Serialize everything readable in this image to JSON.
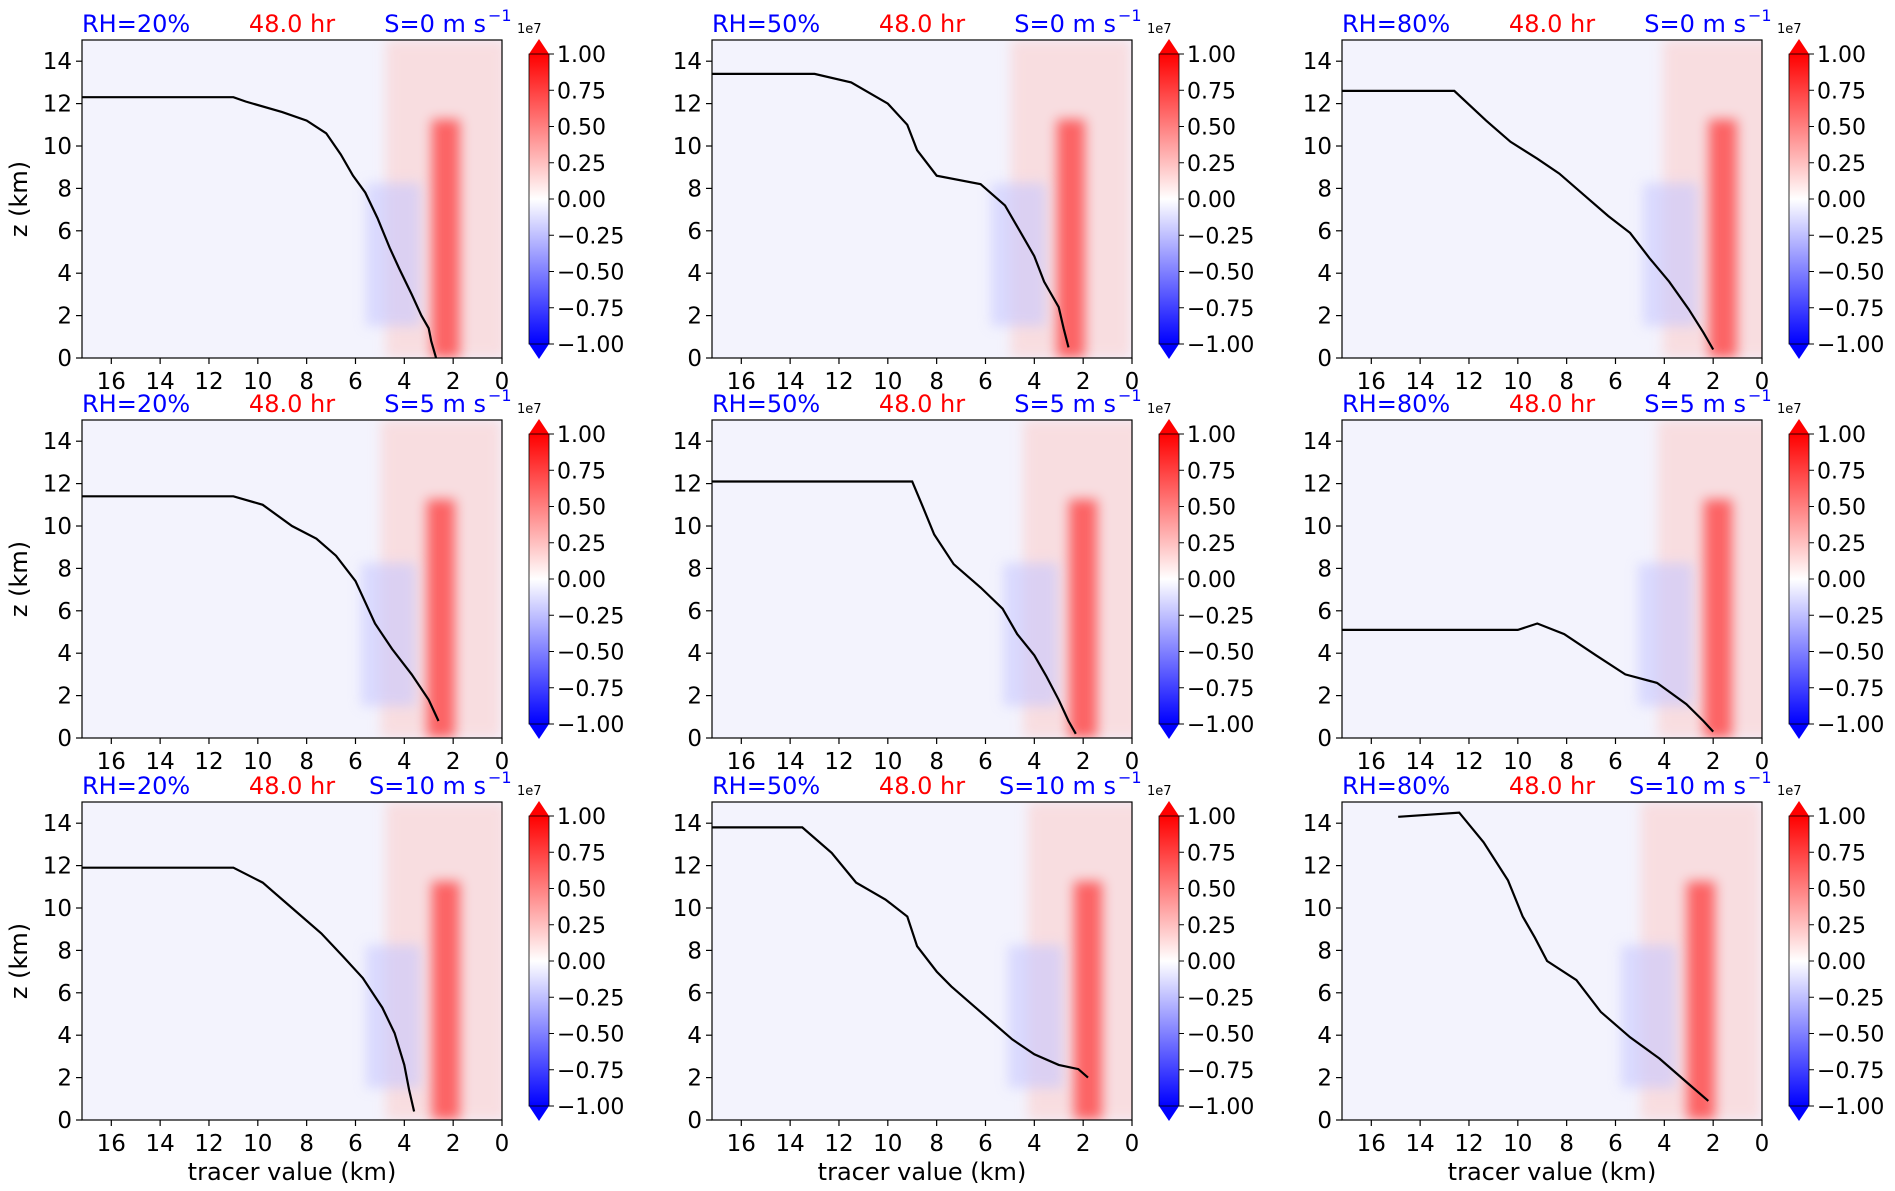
{
  "figure": {
    "time_label": "48.0 hr",
    "x_label": "tracer value (km)",
    "y_label": "z (km)",
    "colorbar_exponent": "1e7",
    "colors": {
      "title_blue": "#0000ff",
      "title_red": "#ff0000",
      "cmap_neg": "#0000ff",
      "cmap_pos": "#ff0000",
      "background": "#f3f3fd"
    }
  },
  "chart_data": {
    "type": "heatmap",
    "layout": "3x3 grid of filled-contour panels",
    "x": {
      "ticks": [
        16,
        14,
        12,
        10,
        8,
        6,
        4,
        2,
        0
      ],
      "range": [
        17.2,
        0
      ],
      "reversed": true
    },
    "y": {
      "ticks": [
        0,
        2,
        4,
        6,
        8,
        10,
        12,
        14
      ],
      "range": [
        0,
        15
      ]
    },
    "colorbar": {
      "ticks": [
        "1.00",
        "0.75",
        "0.50",
        "0.25",
        "0.00",
        "−0.25",
        "−0.50",
        "−0.75",
        "−1.00"
      ],
      "range": [
        -1.0,
        1.0
      ],
      "extend": "both"
    },
    "panels": [
      {
        "rh": "RH=20%",
        "shear": "S=0 m s",
        "sup": "−1",
        "xlabels": false
      },
      {
        "rh": "RH=50%",
        "shear": "S=0 m s",
        "sup": "−1",
        "xlabels": false
      },
      {
        "rh": "RH=80%",
        "shear": "S=0 m s",
        "sup": "−1",
        "xlabels": false
      },
      {
        "rh": "RH=20%",
        "shear": "S=5 m s",
        "sup": "−1",
        "xlabels": false
      },
      {
        "rh": "RH=50%",
        "shear": "S=5 m s",
        "sup": "−1",
        "xlabels": false
      },
      {
        "rh": "RH=80%",
        "shear": "S=5 m s",
        "sup": "−1",
        "xlabels": false
      },
      {
        "rh": "RH=20%",
        "shear": "S=10 m s",
        "sup": "−1",
        "xlabels": true
      },
      {
        "rh": "RH=50%",
        "shear": "S=10 m s",
        "sup": "−1",
        "xlabels": true
      },
      {
        "rh": "RH=80%",
        "shear": "S=10 m s",
        "sup": "−1",
        "xlabels": true
      }
    ]
  }
}
